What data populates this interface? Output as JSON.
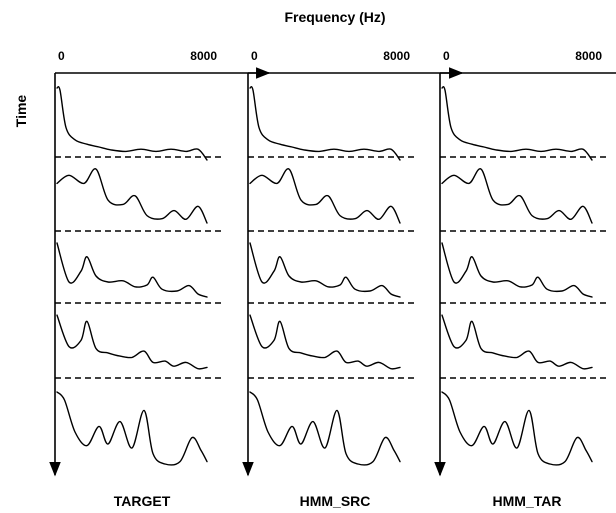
{
  "title": "Frequency (Hz)",
  "ylabel": "Time",
  "panels": [
    {
      "label": "TARGET",
      "x_start": "0",
      "x_end": "8000"
    },
    {
      "label": "HMM_SRC",
      "x_start": "0",
      "x_end": "8000"
    },
    {
      "label": "HMM_TAR",
      "x_start": "0",
      "x_end": "8000"
    }
  ],
  "segments_per_panel": 5,
  "curve_shapes": [
    [
      [
        0,
        1
      ],
      [
        0.02,
        0.97
      ],
      [
        0.06,
        0.45
      ],
      [
        0.12,
        0.28
      ],
      [
        0.2,
        0.22
      ],
      [
        0.28,
        0.18
      ],
      [
        0.36,
        0.14
      ],
      [
        0.46,
        0.12
      ],
      [
        0.56,
        0.15
      ],
      [
        0.66,
        0.12
      ],
      [
        0.76,
        0.15
      ],
      [
        0.86,
        0.12
      ],
      [
        0.94,
        0.15
      ],
      [
        1,
        0
      ]
    ],
    [
      [
        0,
        0.72
      ],
      [
        0.08,
        0.85
      ],
      [
        0.18,
        0.72
      ],
      [
        0.26,
        0.95
      ],
      [
        0.34,
        0.45
      ],
      [
        0.44,
        0.38
      ],
      [
        0.52,
        0.52
      ],
      [
        0.6,
        0.2
      ],
      [
        0.7,
        0.15
      ],
      [
        0.78,
        0.28
      ],
      [
        0.86,
        0.14
      ],
      [
        0.94,
        0.35
      ],
      [
        1,
        0.08
      ]
    ],
    [
      [
        0,
        0.95
      ],
      [
        0.08,
        0.3
      ],
      [
        0.16,
        0.48
      ],
      [
        0.2,
        0.72
      ],
      [
        0.26,
        0.4
      ],
      [
        0.34,
        0.3
      ],
      [
        0.44,
        0.32
      ],
      [
        0.52,
        0.22
      ],
      [
        0.6,
        0.25
      ],
      [
        0.64,
        0.38
      ],
      [
        0.7,
        0.18
      ],
      [
        0.8,
        0.15
      ],
      [
        0.88,
        0.24
      ],
      [
        0.94,
        0.1
      ],
      [
        1,
        0.05
      ]
    ],
    [
      [
        0,
        0.95
      ],
      [
        0.08,
        0.45
      ],
      [
        0.16,
        0.55
      ],
      [
        0.2,
        0.85
      ],
      [
        0.26,
        0.42
      ],
      [
        0.34,
        0.35
      ],
      [
        0.42,
        0.3
      ],
      [
        0.5,
        0.28
      ],
      [
        0.58,
        0.38
      ],
      [
        0.64,
        0.2
      ],
      [
        0.72,
        0.22
      ],
      [
        0.78,
        0.14
      ],
      [
        0.86,
        0.2
      ],
      [
        0.94,
        0.1
      ],
      [
        1,
        0.12
      ]
    ],
    [
      [
        0,
        0.95
      ],
      [
        0.05,
        0.85
      ],
      [
        0.12,
        0.45
      ],
      [
        0.2,
        0.28
      ],
      [
        0.28,
        0.52
      ],
      [
        0.34,
        0.3
      ],
      [
        0.42,
        0.58
      ],
      [
        0.5,
        0.25
      ],
      [
        0.58,
        0.72
      ],
      [
        0.64,
        0.18
      ],
      [
        0.72,
        0.05
      ],
      [
        0.82,
        0.08
      ],
      [
        0.9,
        0.38
      ],
      [
        0.96,
        0.22
      ],
      [
        1,
        0.08
      ]
    ]
  ]
}
